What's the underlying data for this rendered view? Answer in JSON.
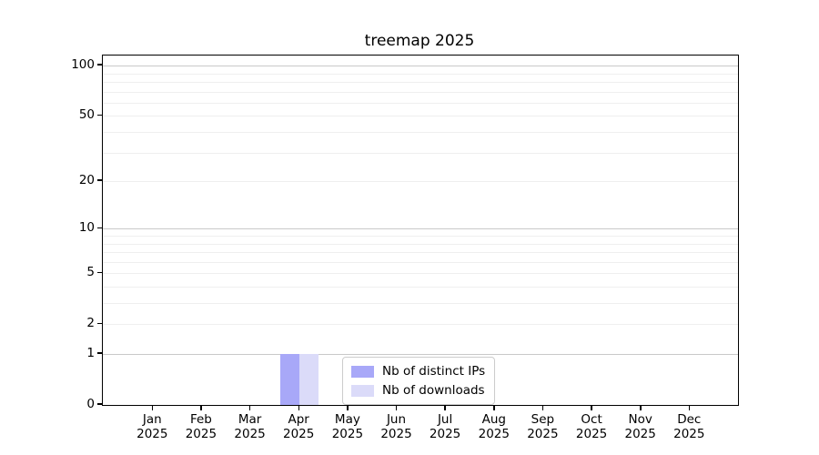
{
  "figure": {
    "title": "treemap 2025"
  },
  "colors": {
    "background": "#ffffff",
    "spine": "#000000",
    "grid_major": "#c9c9c9",
    "grid_minor": "#efefef",
    "text": "#000000",
    "legend_border": "#cccccc",
    "series_ips": "#a8a8f8",
    "series_downloads": "#dbdbf9"
  },
  "chart_data": {
    "type": "bar",
    "title": "treemap 2025",
    "xlabel": "",
    "ylabel": "",
    "categories": [
      "Jan",
      "Feb",
      "Mar",
      "Apr",
      "May",
      "Jun",
      "Jul",
      "Aug",
      "Sep",
      "Oct",
      "Nov",
      "Dec"
    ],
    "category_sublabel": "2025",
    "series": [
      {
        "name": "Nb of distinct IPs",
        "color": "#a8a8f8",
        "values": [
          0,
          0,
          0,
          1,
          0,
          0,
          0,
          0,
          0,
          0,
          0,
          0
        ]
      },
      {
        "name": "Nb of downloads",
        "color": "#dbdbf9",
        "values": [
          0,
          0,
          0,
          1,
          0,
          0,
          0,
          0,
          0,
          0,
          0,
          0
        ]
      }
    ],
    "yscale": "log1p",
    "ylim": [
      0,
      115
    ],
    "y_ticks": [
      0,
      1,
      2,
      5,
      10,
      20,
      50,
      100
    ],
    "y_major_gridlines": [
      1,
      10,
      100
    ],
    "y_minor_gridlines": [
      2,
      3,
      4,
      5,
      6,
      7,
      8,
      9,
      20,
      30,
      40,
      50,
      60,
      70,
      80,
      90
    ],
    "grid": true,
    "legend": {
      "location": "lower center",
      "entries": [
        "Nb of distinct IPs",
        "Nb of downloads"
      ]
    }
  }
}
